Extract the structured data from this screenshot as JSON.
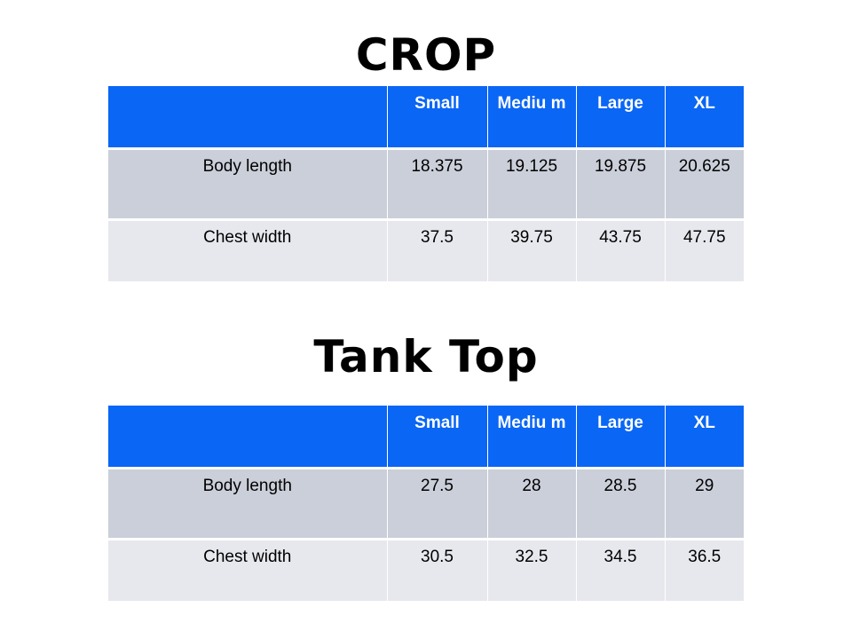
{
  "tables": [
    {
      "title": "CROP",
      "headers": [
        "",
        "Small",
        "Mediu m",
        "Large",
        "XL"
      ],
      "rows": [
        {
          "label": "Body length",
          "values": [
            "18.375",
            "19.125",
            "19.875",
            "20.625"
          ]
        },
        {
          "label": "Chest width",
          "values": [
            "37.5",
            "39.75",
            "43.75",
            "47.75"
          ]
        }
      ]
    },
    {
      "title": "Tank Top",
      "headers": [
        "",
        "Small",
        "Mediu m",
        "Large",
        "XL"
      ],
      "rows": [
        {
          "label": "Body length",
          "values": [
            "27.5",
            "28",
            "28.5",
            "29"
          ]
        },
        {
          "label": "Chest width",
          "values": [
            "30.5",
            "32.5",
            "34.5",
            "36.5"
          ]
        }
      ]
    }
  ],
  "colors": {
    "header_bg": "#0a66f5",
    "header_text": "#ffffff",
    "row_a_bg": "#cbcfd9",
    "row_b_bg": "#e7e8ee"
  }
}
